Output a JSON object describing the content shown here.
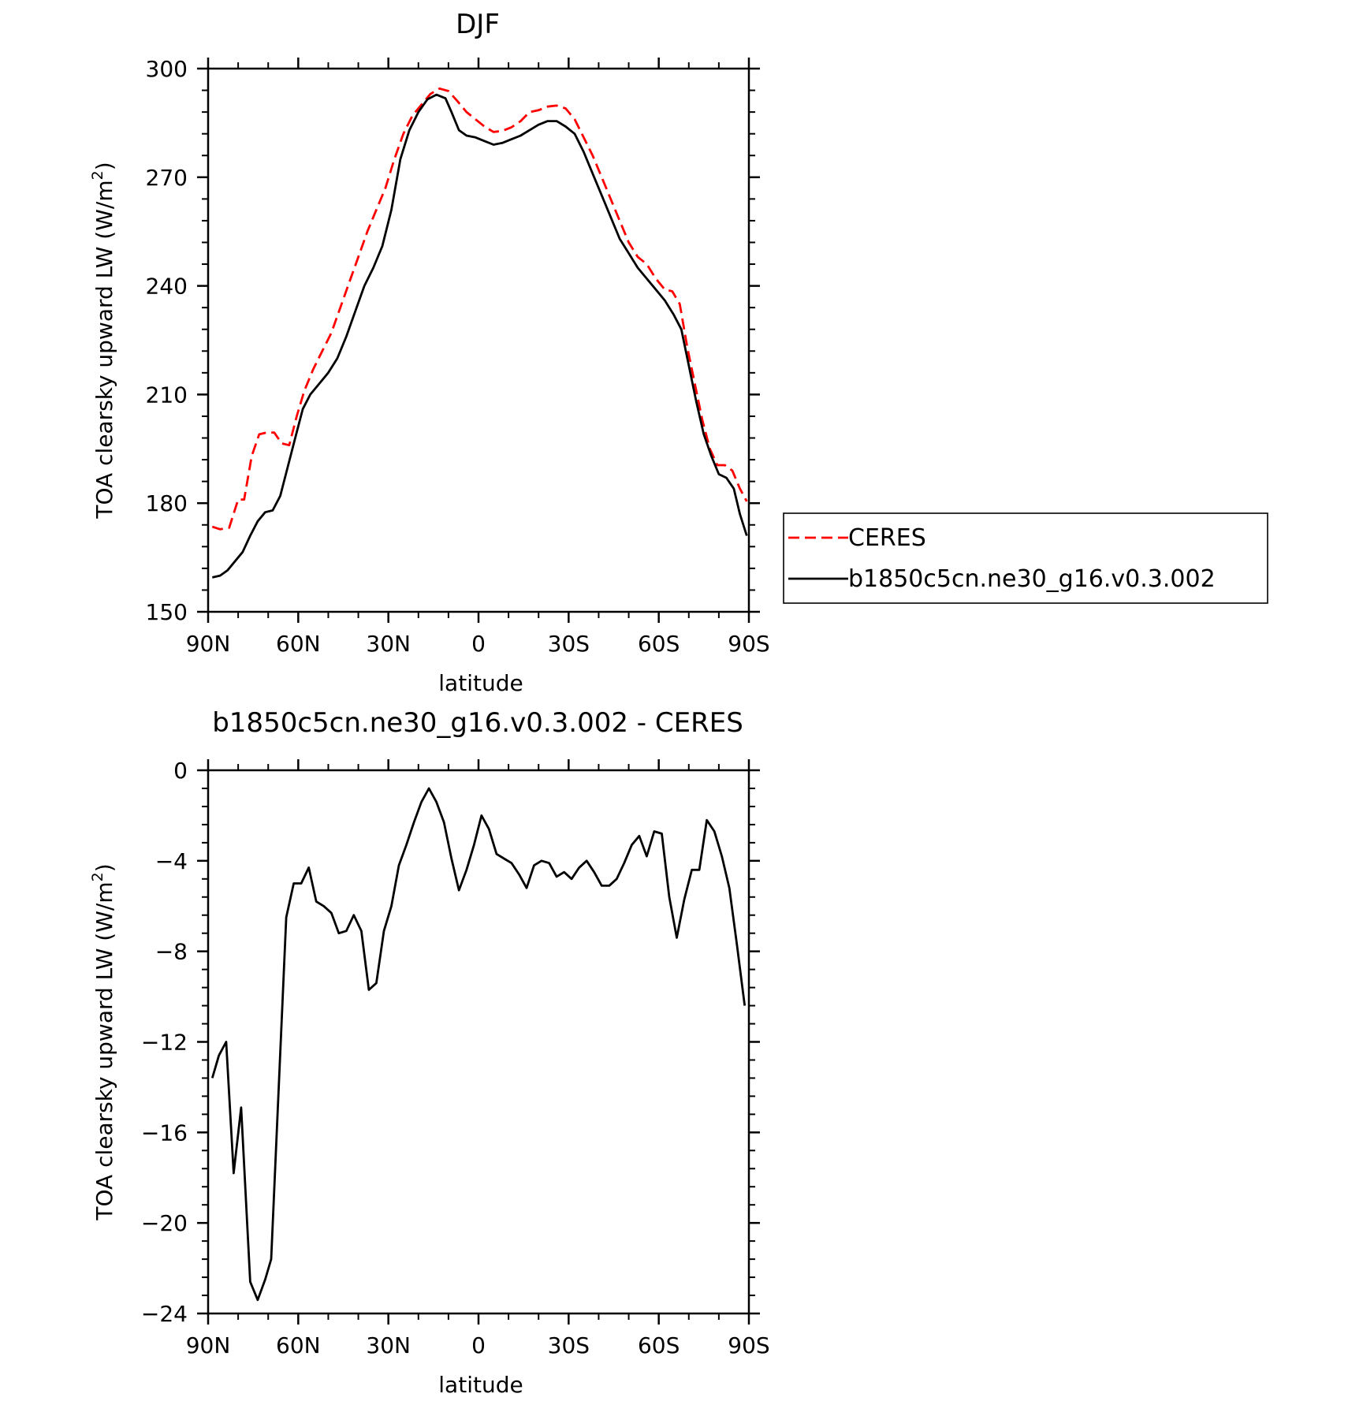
{
  "figure_title": "DJF",
  "chart_data": [
    {
      "type": "line",
      "title": "DJF",
      "xlabel": "latitude",
      "ylabel": "TOA clearsky upward LW (W/m²)",
      "ylabel_parts": {
        "main": "TOA clearsky upward LW (W/m",
        "sup": "2",
        "tail": ")"
      },
      "xlim": [
        90,
        -90
      ],
      "ylim": [
        150,
        300
      ],
      "xticks": [
        {
          "v": 90,
          "label": "90N"
        },
        {
          "v": 60,
          "label": "60N"
        },
        {
          "v": 30,
          "label": "30N"
        },
        {
          "v": 0,
          "label": "0"
        },
        {
          "v": -30,
          "label": "30S"
        },
        {
          "v": -60,
          "label": "60S"
        },
        {
          "v": -90,
          "label": "90S"
        }
      ],
      "yticks": [
        {
          "v": 150,
          "label": "150"
        },
        {
          "v": 180,
          "label": "180"
        },
        {
          "v": 210,
          "label": "210"
        },
        {
          "v": 240,
          "label": "240"
        },
        {
          "v": 270,
          "label": "270"
        },
        {
          "v": 300,
          "label": "300"
        }
      ],
      "legend": "right",
      "series": [
        {
          "name": "CERES",
          "color": "#ff0000",
          "dash": true,
          "points": [
            [
              88.6,
              173.5
            ],
            [
              86,
              172.8
            ],
            [
              83,
              173.2
            ],
            [
              80,
              181
            ],
            [
              78,
              181
            ],
            [
              75.5,
              193
            ],
            [
              73,
              199
            ],
            [
              70.5,
              199.5
            ],
            [
              68,
              199.5
            ],
            [
              65.5,
              196.5
            ],
            [
              63,
              196
            ],
            [
              60.5,
              204
            ],
            [
              58,
              211
            ],
            [
              55,
              217
            ],
            [
              52,
              222
            ],
            [
              49,
              227
            ],
            [
              46,
              234
            ],
            [
              43,
              241
            ],
            [
              40,
              248
            ],
            [
              37,
              255
            ],
            [
              34,
              261
            ],
            [
              31,
              267
            ],
            [
              28,
              275
            ],
            [
              25,
              282
            ],
            [
              22,
              287
            ],
            [
              19,
              290
            ],
            [
              16,
              293
            ],
            [
              13,
              294.5
            ],
            [
              10,
              293.8
            ],
            [
              7,
              291
            ],
            [
              4,
              288
            ],
            [
              1,
              286
            ],
            [
              -2,
              284
            ],
            [
              -5,
              282.5
            ],
            [
              -8,
              282.8
            ],
            [
              -11,
              283.8
            ],
            [
              -14,
              285.5
            ],
            [
              -17,
              288
            ],
            [
              -20,
              288.5
            ],
            [
              -23,
              289.5
            ],
            [
              -26,
              289.8
            ],
            [
              -29,
              289
            ],
            [
              -32,
              286
            ],
            [
              -35,
              281
            ],
            [
              -38,
              276
            ],
            [
              -41,
              270
            ],
            [
              -44,
              264
            ],
            [
              -47,
              258
            ],
            [
              -50,
              252
            ],
            [
              -53,
              248
            ],
            [
              -56,
              246
            ],
            [
              -59,
              242
            ],
            [
              -62,
              239
            ],
            [
              -64.5,
              238.5
            ],
            [
              -67,
              235
            ],
            [
              -69.5,
              223
            ],
            [
              -72,
              213
            ],
            [
              -74.5,
              203
            ],
            [
              -77,
              195
            ],
            [
              -79.5,
              190.5
            ],
            [
              -82,
              190.5
            ],
            [
              -84.5,
              189
            ],
            [
              -87,
              184
            ],
            [
              -89.3,
              180.5
            ]
          ]
        },
        {
          "name": "b1850c5cn.ne30_g16.v0.3.002",
          "color": "#000000",
          "dash": false,
          "points": [
            [
              88.6,
              159.5
            ],
            [
              86,
              160
            ],
            [
              83.5,
              161.5
            ],
            [
              81,
              164
            ],
            [
              78.5,
              166.5
            ],
            [
              76,
              171
            ],
            [
              73.5,
              175
            ],
            [
              71,
              177.5
            ],
            [
              68.5,
              178
            ],
            [
              66,
              182
            ],
            [
              63.5,
              190
            ],
            [
              61,
              198
            ],
            [
              58.5,
              206
            ],
            [
              56,
              210
            ],
            [
              53,
              213
            ],
            [
              50,
              216
            ],
            [
              47,
              220
            ],
            [
              44,
              226
            ],
            [
              41,
              233
            ],
            [
              38,
              240
            ],
            [
              35,
              245
            ],
            [
              32,
              251
            ],
            [
              29,
              261
            ],
            [
              26,
              275
            ],
            [
              23,
              283
            ],
            [
              20,
              288
            ],
            [
              17,
              291.5
            ],
            [
              14,
              292.8
            ],
            [
              11,
              291.8
            ],
            [
              9,
              288
            ],
            [
              6.5,
              283
            ],
            [
              4,
              281.5
            ],
            [
              1,
              281
            ],
            [
              -2,
              280
            ],
            [
              -5,
              279
            ],
            [
              -8,
              279.5
            ],
            [
              -11,
              280.5
            ],
            [
              -14,
              281.5
            ],
            [
              -17,
              283
            ],
            [
              -20,
              284.5
            ],
            [
              -23,
              285.5
            ],
            [
              -26,
              285.5
            ],
            [
              -29,
              284
            ],
            [
              -32,
              282
            ],
            [
              -35,
              277
            ],
            [
              -38,
              271
            ],
            [
              -41,
              265
            ],
            [
              -44,
              259
            ],
            [
              -47,
              253
            ],
            [
              -50,
              249
            ],
            [
              -53,
              245
            ],
            [
              -56,
              242
            ],
            [
              -59,
              239
            ],
            [
              -62,
              236
            ],
            [
              -65,
              232
            ],
            [
              -67.5,
              228
            ],
            [
              -70,
              218
            ],
            [
              -72.5,
              208
            ],
            [
              -75,
              199
            ],
            [
              -77.5,
              193
            ],
            [
              -80,
              188
            ],
            [
              -82.5,
              187
            ],
            [
              -85,
              184
            ],
            [
              -87,
              177
            ],
            [
              -89.3,
              171
            ]
          ]
        }
      ]
    },
    {
      "type": "line",
      "title": "b1850c5cn.ne30_g16.v0.3.002 - CERES",
      "xlabel": "latitude",
      "ylabel": "TOA clearsky upward LW (W/m²)",
      "ylabel_parts": {
        "main": "TOA clearsky upward LW (W/m",
        "sup": "2",
        "tail": ")"
      },
      "xlim": [
        90,
        -90
      ],
      "ylim": [
        -24,
        0
      ],
      "xticks": [
        {
          "v": 90,
          "label": "90N"
        },
        {
          "v": 60,
          "label": "60N"
        },
        {
          "v": 30,
          "label": "30N"
        },
        {
          "v": 0,
          "label": "0"
        },
        {
          "v": -30,
          "label": "30S"
        },
        {
          "v": -60,
          "label": "60S"
        },
        {
          "v": -90,
          "label": "90S"
        }
      ],
      "yticks": [
        {
          "v": -24,
          "label": "−24"
        },
        {
          "v": -20,
          "label": "−20"
        },
        {
          "v": -16,
          "label": "−16"
        },
        {
          "v": -12,
          "label": "−12"
        },
        {
          "v": -8,
          "label": "−8"
        },
        {
          "v": -4,
          "label": "−4"
        },
        {
          "v": 0,
          "label": "0"
        }
      ],
      "series": [
        {
          "name": "",
          "color": "#000000",
          "dash": false,
          "points": [
            [
              88.6,
              -13.6
            ],
            [
              86.4,
              -12.6
            ],
            [
              84,
              -12
            ],
            [
              81.5,
              -17.8
            ],
            [
              79,
              -14.9
            ],
            [
              76,
              -22.6
            ],
            [
              73.5,
              -23.4
            ],
            [
              71,
              -22.5
            ],
            [
              69,
              -21.6
            ],
            [
              66.5,
              -14
            ],
            [
              64,
              -6.5
            ],
            [
              61.5,
              -5
            ],
            [
              59,
              -5
            ],
            [
              56.5,
              -4.3
            ],
            [
              54,
              -5.8
            ],
            [
              51.5,
              -6
            ],
            [
              49,
              -6.3
            ],
            [
              46.5,
              -7.2
            ],
            [
              44,
              -7.1
            ],
            [
              41.5,
              -6.4
            ],
            [
              39,
              -7.1
            ],
            [
              36.5,
              -9.7
            ],
            [
              34,
              -9.4
            ],
            [
              31.5,
              -7.1
            ],
            [
              29,
              -6
            ],
            [
              26.5,
              -4.2
            ],
            [
              24,
              -3.3
            ],
            [
              21.5,
              -2.3
            ],
            [
              19,
              -1.4
            ],
            [
              16.5,
              -0.8
            ],
            [
              14,
              -1.4
            ],
            [
              11.5,
              -2.3
            ],
            [
              9,
              -3.9
            ],
            [
              6.5,
              -5.3
            ],
            [
              4,
              -4.4
            ],
            [
              1.5,
              -3.3
            ],
            [
              -1,
              -2
            ],
            [
              -3.5,
              -2.6
            ],
            [
              -6,
              -3.7
            ],
            [
              -8.5,
              -3.9
            ],
            [
              -11,
              -4.1
            ],
            [
              -13.5,
              -4.6
            ],
            [
              -16,
              -5.2
            ],
            [
              -18.5,
              -4.2
            ],
            [
              -21,
              -4
            ],
            [
              -23.5,
              -4.1
            ],
            [
              -26,
              -4.7
            ],
            [
              -28.5,
              -4.5
            ],
            [
              -31,
              -4.8
            ],
            [
              -33.5,
              -4.3
            ],
            [
              -36,
              -4
            ],
            [
              -38.5,
              -4.5
            ],
            [
              -41,
              -5.1
            ],
            [
              -43.5,
              -5.1
            ],
            [
              -46,
              -4.8
            ],
            [
              -48.5,
              -4.1
            ],
            [
              -51,
              -3.3
            ],
            [
              -53.5,
              -2.9
            ],
            [
              -56,
              -3.8
            ],
            [
              -58.5,
              -2.7
            ],
            [
              -61,
              -2.8
            ],
            [
              -63.5,
              -5.6
            ],
            [
              -66,
              -7.4
            ],
            [
              -68.5,
              -5.7
            ],
            [
              -71,
              -4.4
            ],
            [
              -73.5,
              -4.4
            ],
            [
              -76,
              -2.2
            ],
            [
              -78.5,
              -2.7
            ],
            [
              -81,
              -3.8
            ],
            [
              -83.5,
              -5.2
            ],
            [
              -86,
              -7.7
            ],
            [
              -88.6,
              -10.4
            ]
          ]
        }
      ]
    }
  ]
}
